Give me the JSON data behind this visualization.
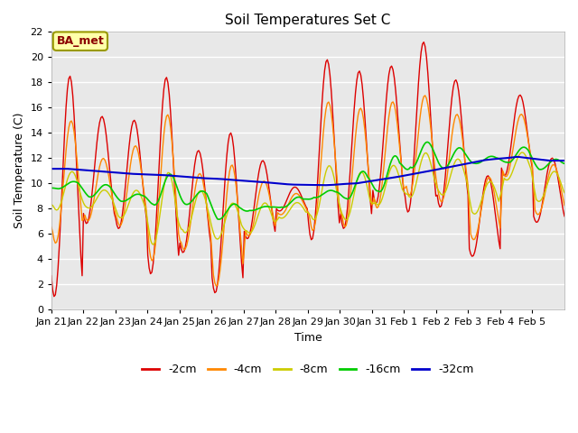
{
  "title": "Soil Temperatures Set C",
  "xlabel": "Time",
  "ylabel": "Soil Temperature (C)",
  "ylim": [
    0,
    22
  ],
  "yticks": [
    0,
    2,
    4,
    6,
    8,
    10,
    12,
    14,
    16,
    18,
    20,
    22
  ],
  "xtick_labels": [
    "Jan 21",
    "Jan 22",
    "Jan 23",
    "Jan 24",
    "Jan 25",
    "Jan 26",
    "Jan 27",
    "Jan 28",
    "Jan 29",
    "Jan 30",
    "Jan 31",
    "Feb 1",
    "Feb 2",
    "Feb 3",
    "Feb 4",
    "Feb 5"
  ],
  "colors": {
    "-2cm": "#dd0000",
    "-4cm": "#ff8800",
    "-8cm": "#cccc00",
    "-16cm": "#00cc00",
    "-32cm": "#0000cc"
  },
  "legend_label": "BA_met",
  "background_color": "#e8e8e8",
  "points_per_day": 24,
  "total_days": 16,
  "title_fontsize": 11,
  "axis_label_fontsize": 9,
  "tick_fontsize": 8,
  "legend_fontsize": 9
}
